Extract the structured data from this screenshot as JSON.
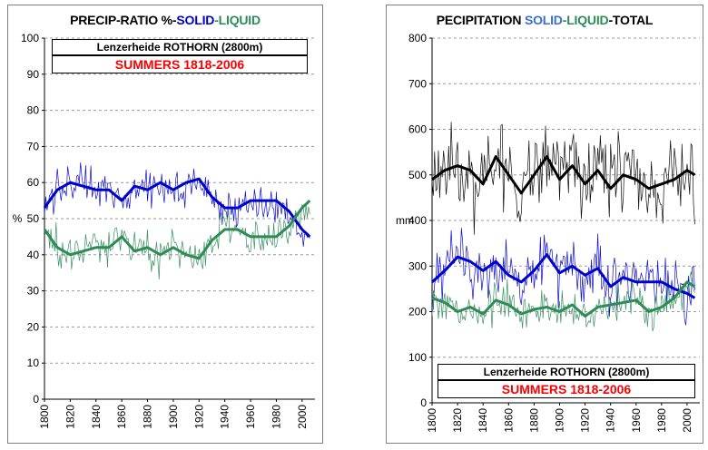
{
  "colors": {
    "solid": "#0000cc",
    "liquid": "#2e8b57",
    "total": "#000000",
    "station": "#ff0000"
  },
  "left_panel": {
    "title_parts": [
      "PRECIP-RATIO %-",
      "SOLID",
      "-",
      "LIQUID"
    ],
    "station": "Lenzerheide ROTHORN (2800m)",
    "period": "SUMMERS 1818-2006"
  },
  "right_panel": {
    "title_parts": [
      "PECIPITATION ",
      "SOLID",
      "-",
      "LIQUID",
      "-TOTAL"
    ],
    "station": "Lenzerheide ROTHORN (2800m)",
    "period": "SUMMERS 1818-2006"
  },
  "chart_data": [
    {
      "type": "line",
      "title": "PRECIP-RATIO %-SOLID-LIQUID",
      "xlabel": "",
      "ylabel": "%",
      "xlim": [
        1800,
        2010
      ],
      "ylim": [
        0,
        100
      ],
      "xticks": [
        1800,
        1820,
        1840,
        1860,
        1880,
        1900,
        1920,
        1940,
        1960,
        1980,
        2000
      ],
      "yticks": [
        0,
        10,
        20,
        30,
        40,
        50,
        60,
        70,
        80,
        90,
        100
      ],
      "grid": "horizontal dashed",
      "series": [
        {
          "name": "SOLID",
          "role": "smoothed",
          "x": [
            1800,
            1810,
            1820,
            1830,
            1840,
            1850,
            1860,
            1870,
            1880,
            1890,
            1900,
            1910,
            1920,
            1930,
            1940,
            1950,
            1960,
            1970,
            1980,
            1990,
            2000,
            2006
          ],
          "values": [
            53,
            58,
            60,
            59,
            58,
            58,
            55,
            59,
            58,
            60,
            58,
            60,
            61,
            56,
            53,
            53,
            55,
            55,
            55,
            52,
            47,
            45
          ]
        },
        {
          "name": "LIQUID",
          "role": "smoothed",
          "x": [
            1800,
            1810,
            1820,
            1830,
            1840,
            1850,
            1860,
            1870,
            1880,
            1890,
            1900,
            1910,
            1920,
            1930,
            1940,
            1950,
            1960,
            1970,
            1980,
            1990,
            2000,
            2006
          ],
          "values": [
            47,
            42,
            40,
            41,
            42,
            42,
            45,
            41,
            42,
            40,
            42,
            40,
            39,
            44,
            47,
            47,
            45,
            45,
            45,
            48,
            53,
            55
          ]
        },
        {
          "name": "SOLID",
          "role": "annual",
          "x_start": 1800,
          "x_end": 2006,
          "mean": 56,
          "amplitude": 6
        },
        {
          "name": "LIQUID",
          "role": "annual",
          "x_start": 1800,
          "x_end": 2006,
          "mean": 44,
          "amplitude": 6
        }
      ]
    },
    {
      "type": "line",
      "title": "PECIPITATION SOLID-LIQUID-TOTAL",
      "xlabel": "",
      "ylabel": "mm",
      "xlim": [
        1800,
        2010
      ],
      "ylim": [
        0,
        800
      ],
      "xticks": [
        1800,
        1820,
        1840,
        1860,
        1880,
        1900,
        1920,
        1940,
        1960,
        1980,
        2000
      ],
      "yticks": [
        0,
        100,
        200,
        300,
        400,
        500,
        600,
        700,
        800
      ],
      "grid": "horizontal dashed",
      "series": [
        {
          "name": "TOTAL",
          "role": "smoothed",
          "x": [
            1800,
            1810,
            1820,
            1830,
            1840,
            1850,
            1860,
            1870,
            1880,
            1890,
            1900,
            1910,
            1920,
            1930,
            1940,
            1950,
            1960,
            1970,
            1980,
            1990,
            2000,
            2006
          ],
          "values": [
            490,
            510,
            520,
            510,
            480,
            540,
            500,
            460,
            500,
            540,
            490,
            520,
            480,
            510,
            470,
            500,
            490,
            470,
            480,
            490,
            510,
            500
          ]
        },
        {
          "name": "SOLID",
          "role": "smoothed",
          "x": [
            1800,
            1810,
            1820,
            1830,
            1840,
            1850,
            1860,
            1870,
            1880,
            1890,
            1900,
            1910,
            1920,
            1930,
            1940,
            1950,
            1960,
            1970,
            1980,
            1990,
            2000,
            2006
          ],
          "values": [
            265,
            290,
            320,
            310,
            290,
            310,
            280,
            265,
            290,
            325,
            285,
            300,
            280,
            295,
            255,
            275,
            265,
            265,
            265,
            250,
            240,
            230
          ]
        },
        {
          "name": "LIQUID",
          "role": "smoothed",
          "x": [
            1800,
            1810,
            1820,
            1830,
            1840,
            1850,
            1860,
            1870,
            1880,
            1890,
            1900,
            1910,
            1920,
            1930,
            1940,
            1950,
            1960,
            1970,
            1980,
            1990,
            2000,
            2006
          ],
          "values": [
            230,
            220,
            200,
            210,
            195,
            225,
            215,
            195,
            205,
            210,
            200,
            215,
            190,
            210,
            215,
            220,
            225,
            200,
            210,
            230,
            265,
            255
          ]
        },
        {
          "name": "TOTAL",
          "role": "annual",
          "x_start": 1800,
          "x_end": 2006,
          "mean": 500,
          "amplitude": 110
        },
        {
          "name": "SOLID",
          "role": "annual",
          "x_start": 1800,
          "x_end": 2006,
          "mean": 280,
          "amplitude": 70
        },
        {
          "name": "LIQUID",
          "role": "annual",
          "x_start": 1800,
          "x_end": 2006,
          "mean": 215,
          "amplitude": 45
        }
      ]
    }
  ]
}
